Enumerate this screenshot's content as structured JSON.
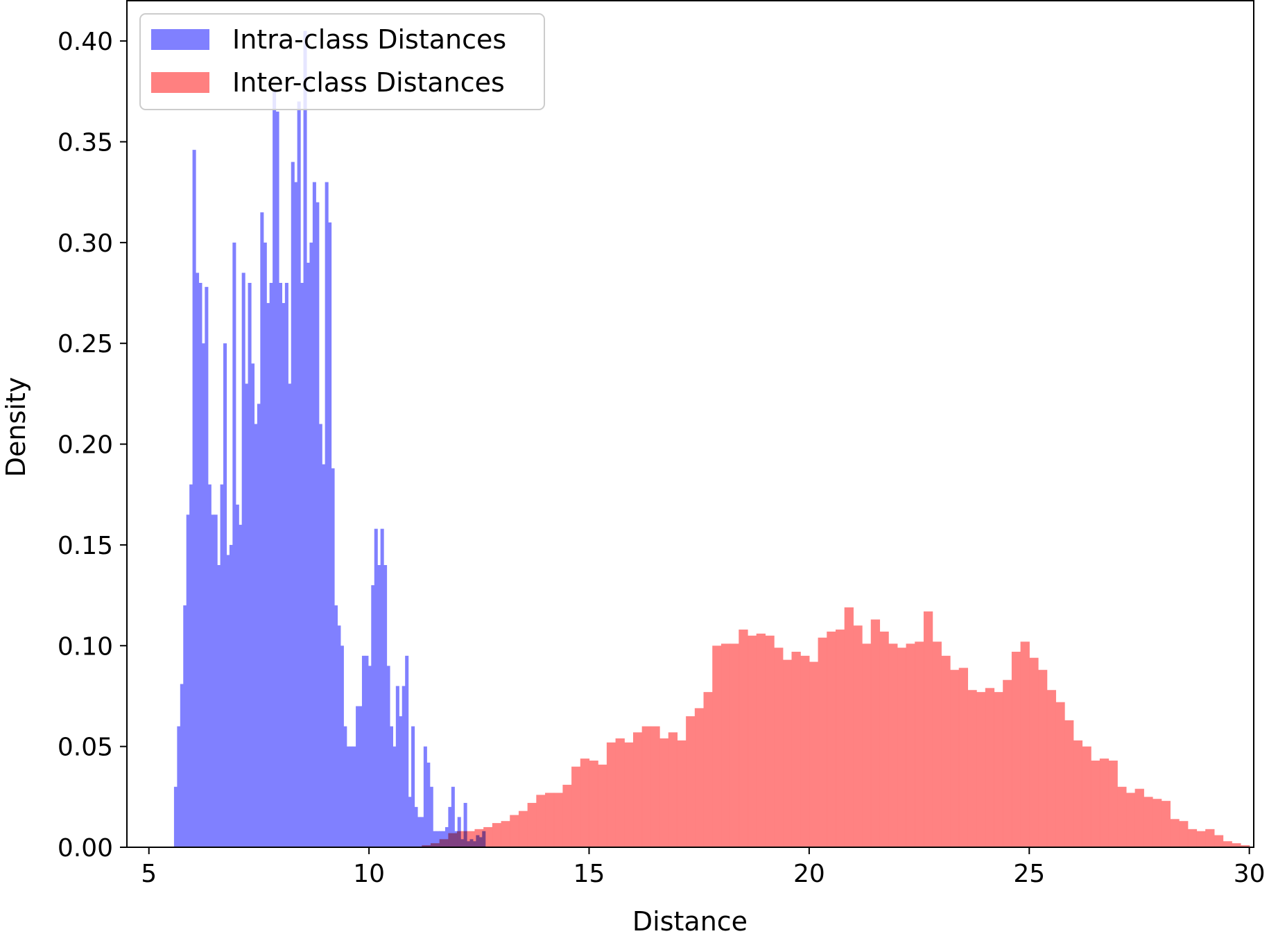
{
  "chart_data": {
    "type": "bar",
    "title": "",
    "xlabel": "Distance",
    "ylabel": "Density",
    "xlim": [
      4.5,
      30.1
    ],
    "ylim": [
      0,
      0.42
    ],
    "xticks": [
      5,
      10,
      15,
      20,
      25,
      30
    ],
    "xtick_labels": [
      "5",
      "10",
      "15",
      "20",
      "25",
      "30"
    ],
    "yticks": [
      0,
      0.05,
      0.1,
      0.15,
      0.2,
      0.25,
      0.3,
      0.35,
      0.4
    ],
    "ytick_labels": [
      "0.00",
      "0.05",
      "0.10",
      "0.15",
      "0.20",
      "0.25",
      "0.30",
      "0.35",
      "0.40"
    ],
    "grid": false,
    "legend_position": "top-left",
    "series": [
      {
        "name": "Intra-class Distances",
        "color": "#8080ff",
        "values": [
          [
            5.57,
            0.03
          ],
          [
            5.64,
            0.06
          ],
          [
            5.71,
            0.081
          ],
          [
            5.78,
            0.12
          ],
          [
            5.85,
            0.165
          ],
          [
            5.92,
            0.18
          ],
          [
            5.99,
            0.346
          ],
          [
            6.06,
            0.285
          ],
          [
            6.13,
            0.28
          ],
          [
            6.2,
            0.25
          ],
          [
            6.27,
            0.278
          ],
          [
            6.34,
            0.18
          ],
          [
            6.41,
            0.165
          ],
          [
            6.48,
            0.165
          ],
          [
            6.55,
            0.14
          ],
          [
            6.62,
            0.18
          ],
          [
            6.69,
            0.25
          ],
          [
            6.76,
            0.145
          ],
          [
            6.83,
            0.15
          ],
          [
            6.9,
            0.3
          ],
          [
            6.97,
            0.17
          ],
          [
            7.04,
            0.16
          ],
          [
            7.11,
            0.285
          ],
          [
            7.18,
            0.23
          ],
          [
            7.25,
            0.28
          ],
          [
            7.32,
            0.24
          ],
          [
            7.39,
            0.21
          ],
          [
            7.46,
            0.22
          ],
          [
            7.53,
            0.315
          ],
          [
            7.6,
            0.3
          ],
          [
            7.67,
            0.27
          ],
          [
            7.74,
            0.28
          ],
          [
            7.81,
            0.375
          ],
          [
            7.88,
            0.365
          ],
          [
            7.95,
            0.28
          ],
          [
            8.02,
            0.27
          ],
          [
            8.09,
            0.28
          ],
          [
            8.16,
            0.23
          ],
          [
            8.23,
            0.34
          ],
          [
            8.3,
            0.33
          ],
          [
            8.37,
            0.37
          ],
          [
            8.44,
            0.28
          ],
          [
            8.51,
            0.405
          ],
          [
            8.58,
            0.29
          ],
          [
            8.65,
            0.3
          ],
          [
            8.72,
            0.33
          ],
          [
            8.79,
            0.32
          ],
          [
            8.86,
            0.21
          ],
          [
            8.93,
            0.19
          ],
          [
            9.0,
            0.33
          ],
          [
            9.07,
            0.31
          ],
          [
            9.14,
            0.188
          ],
          [
            9.21,
            0.12
          ],
          [
            9.28,
            0.11
          ],
          [
            9.35,
            0.1
          ],
          [
            9.42,
            0.06
          ],
          [
            9.49,
            0.05
          ],
          [
            9.56,
            0.05
          ],
          [
            9.63,
            0.05
          ],
          [
            9.7,
            0.07
          ],
          [
            9.77,
            0.07
          ],
          [
            9.84,
            0.095
          ],
          [
            9.91,
            0.095
          ],
          [
            9.98,
            0.09
          ],
          [
            10.05,
            0.13
          ],
          [
            10.12,
            0.158
          ],
          [
            10.19,
            0.14
          ],
          [
            10.26,
            0.158
          ],
          [
            10.33,
            0.14
          ],
          [
            10.4,
            0.09
          ],
          [
            10.47,
            0.06
          ],
          [
            10.54,
            0.05
          ],
          [
            10.61,
            0.08
          ],
          [
            10.68,
            0.065
          ],
          [
            10.75,
            0.08
          ],
          [
            10.82,
            0.095
          ],
          [
            10.89,
            0.025
          ],
          [
            10.96,
            0.06
          ],
          [
            11.03,
            0.02
          ],
          [
            11.1,
            0.015
          ],
          [
            11.17,
            0.015
          ],
          [
            11.24,
            0.05
          ],
          [
            11.31,
            0.042
          ],
          [
            11.38,
            0.03
          ],
          [
            11.45,
            0.008
          ],
          [
            11.52,
            0.008
          ],
          [
            11.59,
            0.008
          ],
          [
            11.66,
            0.008
          ],
          [
            11.73,
            0.01
          ],
          [
            11.8,
            0.02
          ],
          [
            11.87,
            0.03
          ],
          [
            11.94,
            0.008
          ],
          [
            12.01,
            0.015
          ],
          [
            12.08,
            0.004
          ],
          [
            12.15,
            0.022
          ],
          [
            12.22,
            0.003
          ],
          [
            12.29,
            0.004
          ],
          [
            12.36,
            0.003
          ],
          [
            12.43,
            0.006
          ],
          [
            12.5,
            0.005
          ],
          [
            12.57,
            0.008
          ]
        ]
      },
      {
        "name": "Inter-class Distances",
        "color": "#ff8080",
        "values": [
          [
            11.2,
            0.001
          ],
          [
            11.4,
            0.002
          ],
          [
            11.6,
            0.004
          ],
          [
            11.8,
            0.007
          ],
          [
            12.0,
            0.008
          ],
          [
            12.2,
            0.008
          ],
          [
            12.4,
            0.009
          ],
          [
            12.6,
            0.01
          ],
          [
            12.8,
            0.012
          ],
          [
            13.0,
            0.013
          ],
          [
            13.2,
            0.016
          ],
          [
            13.4,
            0.018
          ],
          [
            13.6,
            0.022
          ],
          [
            13.8,
            0.026
          ],
          [
            14.0,
            0.027
          ],
          [
            14.2,
            0.027
          ],
          [
            14.4,
            0.031
          ],
          [
            14.6,
            0.04
          ],
          [
            14.8,
            0.044
          ],
          [
            15.0,
            0.043
          ],
          [
            15.2,
            0.041
          ],
          [
            15.4,
            0.052
          ],
          [
            15.6,
            0.054
          ],
          [
            15.8,
            0.052
          ],
          [
            16.0,
            0.057
          ],
          [
            16.2,
            0.06
          ],
          [
            16.4,
            0.06
          ],
          [
            16.6,
            0.054
          ],
          [
            16.8,
            0.057
          ],
          [
            17.0,
            0.053
          ],
          [
            17.2,
            0.065
          ],
          [
            17.4,
            0.069
          ],
          [
            17.6,
            0.077
          ],
          [
            17.8,
            0.1
          ],
          [
            18.0,
            0.101
          ],
          [
            18.2,
            0.101
          ],
          [
            18.4,
            0.108
          ],
          [
            18.6,
            0.105
          ],
          [
            18.8,
            0.106
          ],
          [
            19.0,
            0.105
          ],
          [
            19.2,
            0.099
          ],
          [
            19.4,
            0.093
          ],
          [
            19.6,
            0.097
          ],
          [
            19.8,
            0.095
          ],
          [
            20.0,
            0.092
          ],
          [
            20.2,
            0.104
          ],
          [
            20.4,
            0.107
          ],
          [
            20.6,
            0.108
          ],
          [
            20.8,
            0.119
          ],
          [
            21.0,
            0.11
          ],
          [
            21.2,
            0.101
          ],
          [
            21.4,
            0.113
          ],
          [
            21.6,
            0.107
          ],
          [
            21.8,
            0.101
          ],
          [
            22.0,
            0.099
          ],
          [
            22.2,
            0.101
          ],
          [
            22.4,
            0.102
          ],
          [
            22.6,
            0.117
          ],
          [
            22.8,
            0.102
          ],
          [
            23.0,
            0.095
          ],
          [
            23.2,
            0.088
          ],
          [
            23.4,
            0.089
          ],
          [
            23.6,
            0.078
          ],
          [
            23.8,
            0.077
          ],
          [
            24.0,
            0.079
          ],
          [
            24.2,
            0.077
          ],
          [
            24.4,
            0.083
          ],
          [
            24.6,
            0.097
          ],
          [
            24.8,
            0.102
          ],
          [
            25.0,
            0.094
          ],
          [
            25.2,
            0.088
          ],
          [
            25.4,
            0.078
          ],
          [
            25.6,
            0.072
          ],
          [
            25.8,
            0.063
          ],
          [
            26.0,
            0.053
          ],
          [
            26.2,
            0.05
          ],
          [
            26.4,
            0.043
          ],
          [
            26.6,
            0.044
          ],
          [
            26.8,
            0.043
          ],
          [
            27.0,
            0.03
          ],
          [
            27.2,
            0.027
          ],
          [
            27.4,
            0.029
          ],
          [
            27.6,
            0.025
          ],
          [
            27.8,
            0.024
          ],
          [
            28.0,
            0.023
          ],
          [
            28.2,
            0.014
          ],
          [
            28.4,
            0.013
          ],
          [
            28.6,
            0.009
          ],
          [
            28.8,
            0.008
          ],
          [
            29.0,
            0.009
          ],
          [
            29.2,
            0.006
          ],
          [
            29.4,
            0.003
          ],
          [
            29.6,
            0.002
          ],
          [
            29.8,
            0.001
          ]
        ]
      }
    ]
  }
}
